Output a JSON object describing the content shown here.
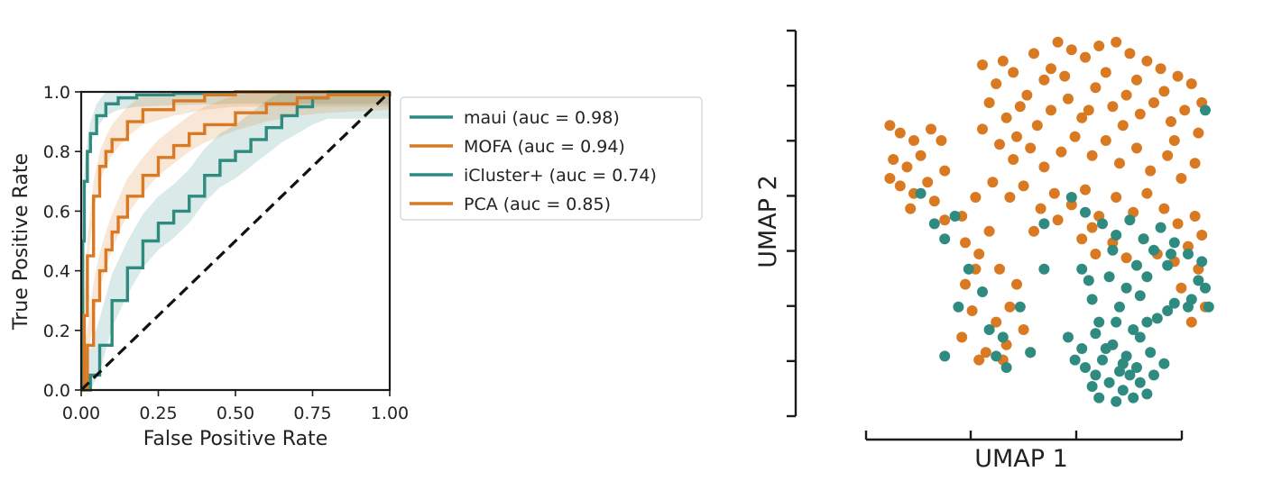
{
  "colors": {
    "teal": "#2f8a80",
    "orange": "#d97a22",
    "teal_band": "#bcdcd4",
    "orange_band": "#f4d3b0"
  },
  "chart_data": [
    {
      "type": "line",
      "xlabel": "False Positive Rate",
      "ylabel": "True Positive Rate",
      "xlim": [
        0,
        1
      ],
      "ylim": [
        0,
        1
      ],
      "xticks": [
        "0.00",
        "0.25",
        "0.50",
        "0.75",
        "1.00"
      ],
      "yticks": [
        "0.0",
        "0.2",
        "0.4",
        "0.6",
        "0.8",
        "1.0"
      ],
      "legend_position": "outside-right",
      "series": [
        {
          "name": "maui (auc = 0.98)",
          "color": "#2f8a80",
          "band": 0.04,
          "x": [
            0,
            0.005,
            0.01,
            0.02,
            0.03,
            0.05,
            0.08,
            0.12,
            0.18,
            0.3,
            0.5,
            1.0
          ],
          "y": [
            0,
            0.5,
            0.7,
            0.8,
            0.86,
            0.92,
            0.96,
            0.98,
            0.99,
            0.995,
            1.0,
            1.0
          ]
        },
        {
          "name": "MOFA (auc = 0.94)",
          "color": "#d97a22",
          "band": 0.05,
          "x": [
            0,
            0.01,
            0.02,
            0.04,
            0.06,
            0.08,
            0.1,
            0.15,
            0.2,
            0.3,
            0.4,
            0.5,
            1.0
          ],
          "y": [
            0,
            0.25,
            0.45,
            0.65,
            0.75,
            0.8,
            0.84,
            0.9,
            0.94,
            0.97,
            0.99,
            1.0,
            1.0
          ]
        },
        {
          "name": "iCluster+ (auc = 0.74)",
          "color": "#2f8a80",
          "band": 0.09,
          "x": [
            0,
            0.03,
            0.06,
            0.1,
            0.15,
            0.2,
            0.25,
            0.3,
            0.35,
            0.4,
            0.45,
            0.5,
            0.55,
            0.6,
            0.65,
            0.7,
            0.75,
            0.8,
            0.9,
            1.0
          ],
          "y": [
            0,
            0.05,
            0.15,
            0.3,
            0.41,
            0.5,
            0.56,
            0.6,
            0.65,
            0.72,
            0.77,
            0.8,
            0.84,
            0.88,
            0.92,
            0.95,
            0.98,
            1.0,
            1.0,
            1.0
          ]
        },
        {
          "name": "PCA (auc = 0.85)",
          "color": "#d97a22",
          "band": 0.06,
          "x": [
            0,
            0.02,
            0.04,
            0.06,
            0.08,
            0.1,
            0.12,
            0.15,
            0.2,
            0.25,
            0.3,
            0.35,
            0.4,
            0.5,
            0.6,
            0.7,
            0.8,
            1.0
          ],
          "y": [
            0,
            0.15,
            0.3,
            0.4,
            0.47,
            0.53,
            0.58,
            0.65,
            0.72,
            0.78,
            0.82,
            0.86,
            0.89,
            0.93,
            0.96,
            0.98,
            0.99,
            1.0
          ]
        },
        {
          "name": "",
          "color": "#111111",
          "dashed": true,
          "x": [
            0,
            1
          ],
          "y": [
            0,
            1
          ]
        }
      ]
    },
    {
      "type": "scatter",
      "xlabel": "UMAP 1",
      "ylabel": "UMAP 2",
      "xlim": [
        0,
        10
      ],
      "ylim": [
        0,
        10
      ],
      "tick_labels_shown": false,
      "series": [
        {
          "color": "#d97a22",
          "points": [
            [
              0.3,
              7.4
            ],
            [
              0.6,
              7.2
            ],
            [
              1.0,
              7.0
            ],
            [
              0.4,
              6.5
            ],
            [
              0.8,
              6.3
            ],
            [
              1.2,
              6.6
            ],
            [
              1.5,
              7.3
            ],
            [
              1.8,
              7.0
            ],
            [
              0.6,
              5.8
            ],
            [
              1.0,
              5.6
            ],
            [
              1.4,
              5.9
            ],
            [
              1.9,
              6.2
            ],
            [
              0.3,
              6.0
            ],
            [
              0.9,
              5.2
            ],
            [
              1.6,
              5.4
            ],
            [
              1.9,
              4.9
            ],
            [
              2.4,
              5.0
            ],
            [
              2.8,
              5.5
            ],
            [
              2.5,
              4.3
            ],
            [
              2.9,
              4.0
            ],
            [
              3.2,
              4.6
            ],
            [
              3.5,
              3.6
            ],
            [
              3.8,
              2.6
            ],
            [
              4.0,
              3.2
            ],
            [
              3.4,
              2.2
            ],
            [
              4.2,
              2.0
            ],
            [
              3.7,
              1.6
            ],
            [
              4.4,
              1.4
            ],
            [
              3.1,
              1.4
            ],
            [
              2.7,
              2.5
            ],
            [
              2.5,
              3.2
            ],
            [
              2.8,
              3.6
            ],
            [
              2.4,
              1.8
            ],
            [
              2.9,
              1.2
            ],
            [
              3.6,
              1.2
            ],
            [
              3.0,
              9.0
            ],
            [
              3.4,
              8.5
            ],
            [
              3.9,
              8.8
            ],
            [
              4.3,
              8.2
            ],
            [
              4.8,
              8.6
            ],
            [
              5.2,
              9.6
            ],
            [
              5.6,
              9.4
            ],
            [
              6.0,
              9.2
            ],
            [
              6.4,
              9.5
            ],
            [
              6.9,
              9.6
            ],
            [
              7.3,
              9.3
            ],
            [
              7.8,
              9.1
            ],
            [
              8.2,
              8.9
            ],
            [
              8.7,
              8.7
            ],
            [
              9.1,
              8.5
            ],
            [
              3.2,
              8.0
            ],
            [
              3.7,
              7.6
            ],
            [
              4.1,
              7.9
            ],
            [
              4.6,
              7.4
            ],
            [
              5.0,
              7.8
            ],
            [
              5.5,
              8.1
            ],
            [
              5.9,
              7.6
            ],
            [
              6.3,
              8.4
            ],
            [
              6.8,
              7.9
            ],
            [
              7.2,
              8.2
            ],
            [
              7.6,
              7.7
            ],
            [
              8.0,
              8.0
            ],
            [
              8.5,
              7.5
            ],
            [
              8.9,
              7.8
            ],
            [
              9.3,
              7.2
            ],
            [
              3.5,
              6.9
            ],
            [
              3.9,
              6.5
            ],
            [
              4.4,
              6.8
            ],
            [
              4.8,
              6.3
            ],
            [
              5.3,
              6.7
            ],
            [
              5.7,
              7.1
            ],
            [
              6.2,
              6.6
            ],
            [
              6.6,
              7.0
            ],
            [
              7.0,
              6.4
            ],
            [
              7.5,
              6.8
            ],
            [
              7.9,
              6.2
            ],
            [
              8.4,
              6.6
            ],
            [
              8.8,
              6.0
            ],
            [
              9.2,
              6.4
            ],
            [
              3.3,
              5.9
            ],
            [
              3.8,
              5.5
            ],
            [
              4.2,
              5.8
            ],
            [
              4.7,
              5.2
            ],
            [
              5.1,
              5.6
            ],
            [
              5.6,
              5.3
            ],
            [
              6.0,
              5.7
            ],
            [
              6.4,
              5.0
            ],
            [
              6.9,
              5.5
            ],
            [
              7.4,
              5.1
            ],
            [
              7.8,
              5.6
            ],
            [
              8.3,
              5.2
            ],
            [
              8.7,
              4.8
            ],
            [
              9.2,
              5.0
            ],
            [
              9.4,
              4.5
            ],
            [
              5.9,
              4.4
            ],
            [
              6.3,
              4.0
            ],
            [
              6.8,
              4.3
            ],
            [
              7.2,
              3.9
            ],
            [
              7.7,
              4.4
            ],
            [
              8.1,
              4.0
            ],
            [
              8.6,
              3.8
            ],
            [
              9.0,
              4.2
            ],
            [
              9.3,
              3.6
            ],
            [
              9.5,
              2.6
            ],
            [
              9.1,
              2.2
            ],
            [
              8.8,
              3.1
            ],
            [
              5.0,
              8.9
            ],
            [
              4.5,
              9.3
            ],
            [
              3.6,
              9.1
            ],
            [
              5.4,
              8.7
            ],
            [
              6.6,
              8.8
            ],
            [
              7.5,
              8.6
            ],
            [
              8.3,
              8.3
            ],
            [
              9.4,
              8.0
            ],
            [
              4.0,
              7.1
            ],
            [
              6.1,
              7.8
            ],
            [
              7.1,
              7.4
            ],
            [
              8.6,
              7.0
            ],
            [
              5.2,
              4.9
            ],
            [
              4.5,
              4.6
            ],
            [
              6.2,
              4.7
            ],
            [
              3.0,
              7.3
            ]
          ]
        },
        {
          "color": "#2f8a80",
          "points": [
            [
              1.2,
              5.6
            ],
            [
              2.2,
              5.0
            ],
            [
              1.6,
              4.8
            ],
            [
              1.9,
              4.4
            ],
            [
              2.6,
              3.6
            ],
            [
              3.0,
              3.0
            ],
            [
              2.3,
              2.6
            ],
            [
              3.2,
              2.0
            ],
            [
              4.1,
              2.6
            ],
            [
              3.4,
              1.3
            ],
            [
              3.6,
              1.8
            ],
            [
              3.7,
              1.0
            ],
            [
              4.4,
              1.4
            ],
            [
              5.6,
              5.5
            ],
            [
              4.8,
              4.8
            ],
            [
              6.0,
              5.1
            ],
            [
              6.5,
              4.8
            ],
            [
              6.9,
              4.5
            ],
            [
              7.3,
              4.9
            ],
            [
              7.7,
              4.4
            ],
            [
              8.2,
              4.7
            ],
            [
              8.6,
              4.3
            ],
            [
              9.0,
              4.0
            ],
            [
              9.4,
              3.8
            ],
            [
              8.4,
              3.7
            ],
            [
              7.8,
              3.4
            ],
            [
              7.2,
              3.1
            ],
            [
              6.7,
              3.4
            ],
            [
              6.2,
              2.8
            ],
            [
              7.0,
              2.6
            ],
            [
              7.6,
              2.9
            ],
            [
              8.1,
              2.3
            ],
            [
              8.6,
              2.7
            ],
            [
              6.4,
              2.2
            ],
            [
              7.4,
              2.0
            ],
            [
              5.5,
              1.8
            ],
            [
              5.9,
              1.5
            ],
            [
              6.3,
              1.9
            ],
            [
              6.8,
              1.6
            ],
            [
              7.2,
              1.3
            ],
            [
              7.6,
              1.8
            ],
            [
              6.0,
              1.0
            ],
            [
              6.5,
              1.2
            ],
            [
              7.0,
              0.9
            ],
            [
              7.5,
              1.0
            ],
            [
              7.9,
              1.4
            ],
            [
              6.2,
              0.5
            ],
            [
              6.7,
              0.6
            ],
            [
              7.1,
              0.4
            ],
            [
              7.6,
              0.6
            ],
            [
              8.0,
              0.8
            ],
            [
              6.4,
              0.2
            ],
            [
              6.9,
              0.1
            ],
            [
              7.4,
              0.2
            ],
            [
              7.8,
              0.3
            ],
            [
              8.3,
              1.1
            ],
            [
              9.5,
              3.1
            ],
            [
              9.6,
              2.6
            ],
            [
              9.3,
              3.3
            ],
            [
              1.9,
              1.3
            ],
            [
              9.5,
              7.8
            ],
            [
              4.8,
              3.6
            ],
            [
              6.8,
              4.1
            ],
            [
              5.9,
              3.6
            ],
            [
              7.3,
              0.8
            ],
            [
              6.9,
              2.2
            ],
            [
              8.5,
              4.0
            ],
            [
              9.1,
              2.8
            ],
            [
              5.7,
              1.2
            ],
            [
              6.6,
              1.5
            ],
            [
              7.1,
              1.1
            ],
            [
              7.8,
              2.2
            ],
            [
              8.4,
              2.5
            ],
            [
              6.1,
              3.3
            ],
            [
              7.5,
              3.7
            ],
            [
              8.0,
              4.1
            ],
            [
              9.0,
              2.6
            ],
            [
              6.3,
              0.8
            ]
          ]
        }
      ]
    }
  ]
}
